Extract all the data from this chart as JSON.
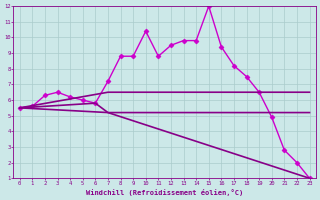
{
  "bg_color": "#cce8e8",
  "grid_color": "#aacccc",
  "line_color": "#880088",
  "line_color_bright": "#cc00cc",
  "xlabel": "Windchill (Refroidissement éolien,°C)",
  "xlim": [
    -0.5,
    23.5
  ],
  "ylim": [
    1,
    12
  ],
  "yticks": [
    1,
    2,
    3,
    4,
    5,
    6,
    7,
    8,
    9,
    10,
    11,
    12
  ],
  "xticks": [
    0,
    1,
    2,
    3,
    4,
    5,
    6,
    7,
    8,
    9,
    10,
    11,
    12,
    13,
    14,
    15,
    16,
    17,
    18,
    19,
    20,
    21,
    22,
    23
  ],
  "series": [
    {
      "x": [
        0,
        1,
        2,
        3,
        4,
        5,
        6,
        7,
        8,
        9,
        10,
        11,
        12,
        13,
        14,
        15,
        16,
        17,
        18,
        19,
        20,
        21,
        22,
        23
      ],
      "y": [
        5.5,
        5.6,
        6.3,
        6.5,
        6.2,
        6.0,
        5.8,
        7.2,
        8.8,
        8.8,
        10.4,
        8.8,
        9.5,
        9.8,
        9.8,
        12.0,
        9.4,
        8.2,
        7.5,
        6.5,
        4.9,
        2.8,
        2.0,
        1.0
      ],
      "marker": "D",
      "markersize": 2.5,
      "linewidth": 1.0,
      "color": "#cc00cc"
    },
    {
      "x": [
        0,
        7,
        14,
        23
      ],
      "y": [
        5.5,
        6.5,
        6.5,
        6.5
      ],
      "marker": null,
      "markersize": 0,
      "linewidth": 1.2,
      "color": "#880088"
    },
    {
      "x": [
        0,
        6,
        7,
        23
      ],
      "y": [
        5.5,
        5.8,
        5.2,
        5.2
      ],
      "marker": null,
      "markersize": 0,
      "linewidth": 1.2,
      "color": "#880088"
    },
    {
      "x": [
        0,
        7,
        23
      ],
      "y": [
        5.5,
        5.2,
        1.0
      ],
      "marker": null,
      "markersize": 0,
      "linewidth": 1.2,
      "color": "#880088"
    }
  ]
}
